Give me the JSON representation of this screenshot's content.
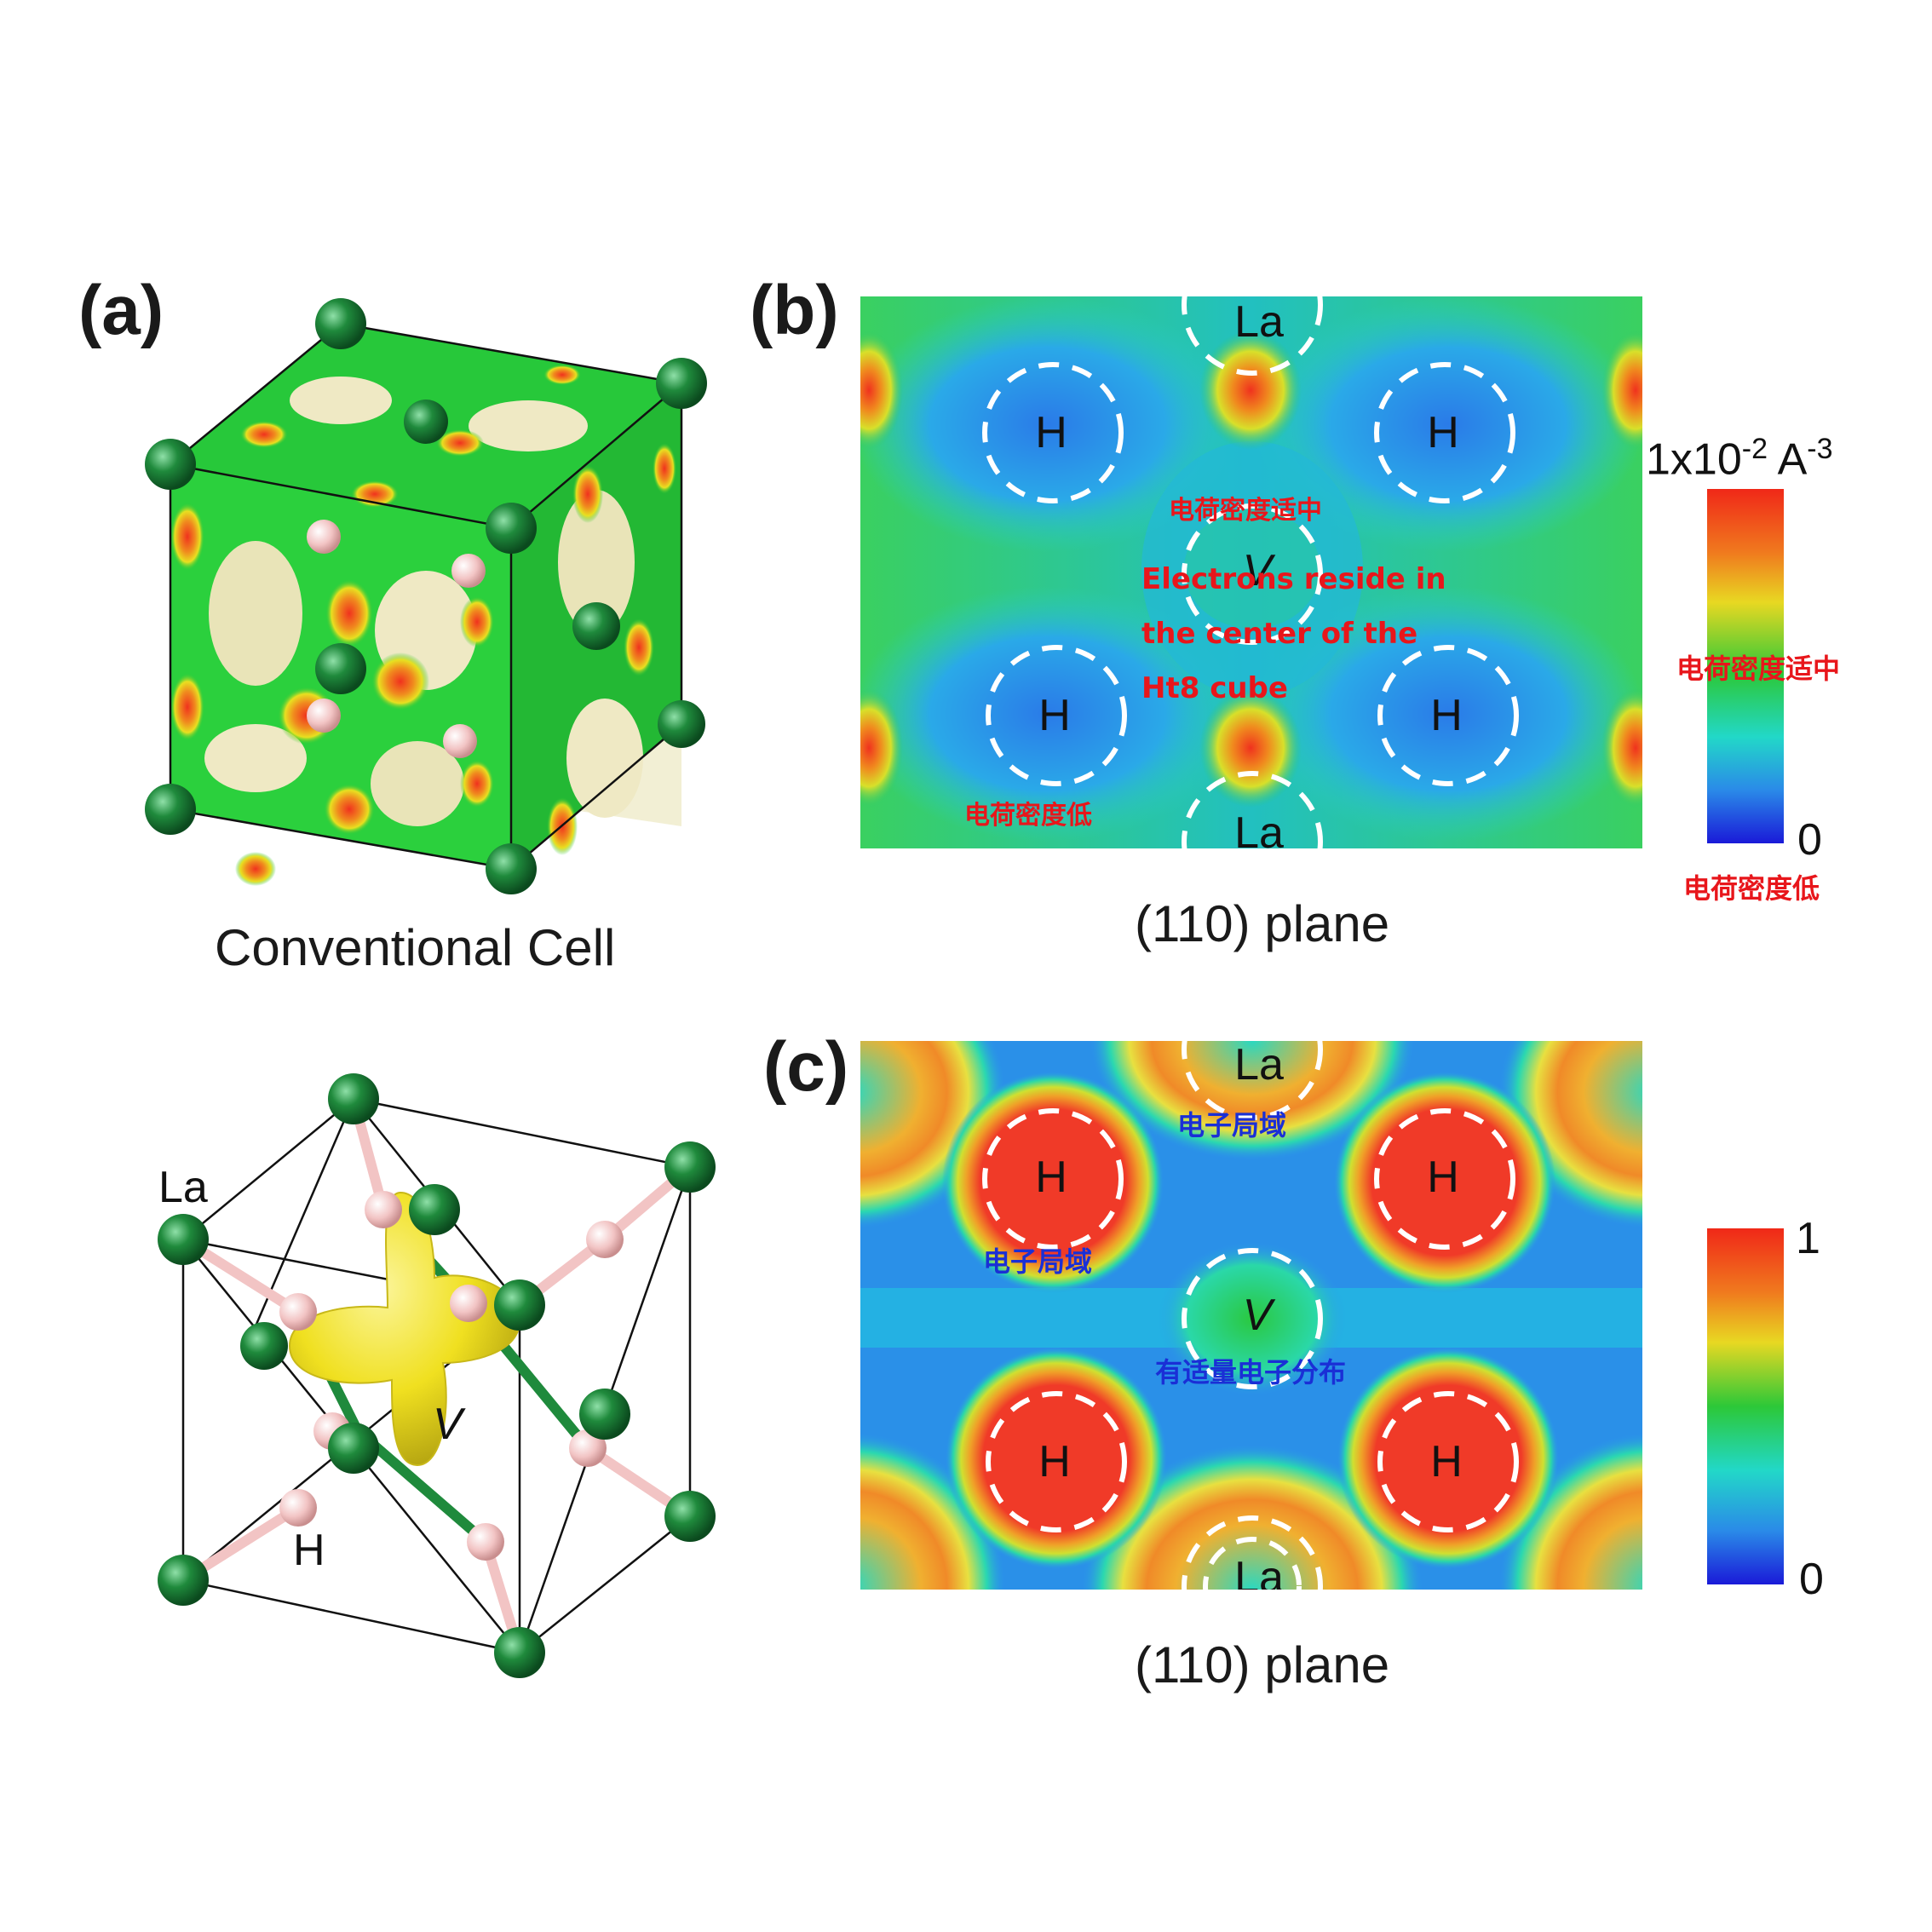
{
  "panels": {
    "a": {
      "letter": "(a)",
      "caption": "Conventional Cell"
    },
    "b": {
      "letter": "(b)",
      "caption": "(110) plane",
      "atoms": {
        "la_top": "La",
        "la_bottom": "La",
        "h": "H",
        "v": "V"
      },
      "notes": {
        "moderate_center": "电荷密度适中",
        "english_1": "Electrons reside in",
        "english_2": "the center of the",
        "english_3": "Ht8 cube",
        "low": "电荷密度低"
      },
      "colorbar": {
        "unit_base": "1x10",
        "unit_exp": "-2",
        "unit_mid": " A",
        "unit_exp2": "-3",
        "max_label": "",
        "min_label": "0",
        "mid_note": "电荷密度适中",
        "low_note": "电荷密度低"
      }
    },
    "c": {
      "letter": "(c)",
      "caption": "(110) plane",
      "atoms": {
        "la_top": "La",
        "la_bottom": "La",
        "h": "H",
        "v": "V"
      },
      "notes": {
        "local_top": "电子局域",
        "local_left": "电子局域",
        "moderate": "有适量电子分布"
      },
      "colorbar": {
        "max_label": "1",
        "min_label": "0"
      }
    },
    "d": {
      "la_label": "La",
      "h_label": "H",
      "v_label": "V"
    }
  },
  "colors": {
    "la_atom": "#1f8a3c",
    "h_atom": "#f2c4c4",
    "isosurface": "#f0e020",
    "map_green": "#27c83a",
    "map_blue": "#2a7be8",
    "map_red": "#f0321e",
    "note_red": "#e8161b",
    "note_blue": "#1a2fd6"
  }
}
